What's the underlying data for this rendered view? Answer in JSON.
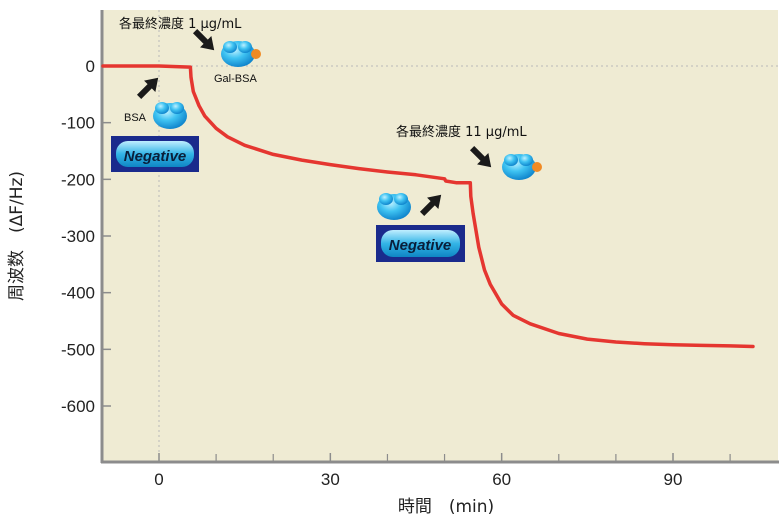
{
  "chart_data": {
    "type": "line",
    "xlabel": "時間　(min)",
    "ylabel": "周波数　(ΔF/Hz)",
    "xlim": [
      -10,
      108
    ],
    "ylim": [
      -690,
      100
    ],
    "xticks": [
      0,
      30,
      60,
      90
    ],
    "yticks": [
      0,
      -100,
      -200,
      -300,
      -400,
      -500,
      -600
    ],
    "xtick_labels": [
      "0",
      "30",
      "60",
      "90"
    ],
    "ytick_labels": [
      "0",
      "-100",
      "-200",
      "-300",
      "-400",
      "-500",
      "-600"
    ],
    "grid": "dotted reference lines at x=0 and y=0",
    "background": "#efebd3",
    "series": [
      {
        "color": "#e53630",
        "x": [
          -10,
          0,
          3,
          5.5,
          5.6,
          6,
          7,
          8,
          10,
          12,
          15,
          20,
          25,
          30,
          35,
          40,
          45,
          50,
          50.2,
          52,
          54.5,
          54.6,
          55,
          56,
          57,
          58,
          60,
          62,
          65,
          70,
          75,
          80,
          85,
          90,
          95,
          100,
          104
        ],
        "y": [
          0,
          0,
          -1,
          -2,
          -20,
          -45,
          -70,
          -88,
          -110,
          -125,
          -140,
          -156,
          -166,
          -174,
          -181,
          -187,
          -192,
          -199,
          -203,
          -206,
          -206,
          -230,
          -260,
          -320,
          -360,
          -385,
          -420,
          -440,
          -455,
          -472,
          -482,
          -487,
          -490,
          -492,
          -493,
          -494,
          -495
        ]
      }
    ],
    "annotations": {
      "label_1ug": "各最終濃度 1 μg/mL",
      "label_11ug": "各最終濃度 11 μg/mL",
      "label_bsa": "BSA",
      "label_galbsa": "Gal-BSA",
      "negative_1": "Negative",
      "negative_2": "Negative"
    }
  },
  "colors": {
    "plot_bg": "#efebd3",
    "axis": "#8a8a8a",
    "line": "#e53630",
    "protein": "#19a0e6",
    "gal": "#f08a24",
    "badge_frame": "#1a2a8c",
    "badge_fill": "#34b6e8"
  }
}
